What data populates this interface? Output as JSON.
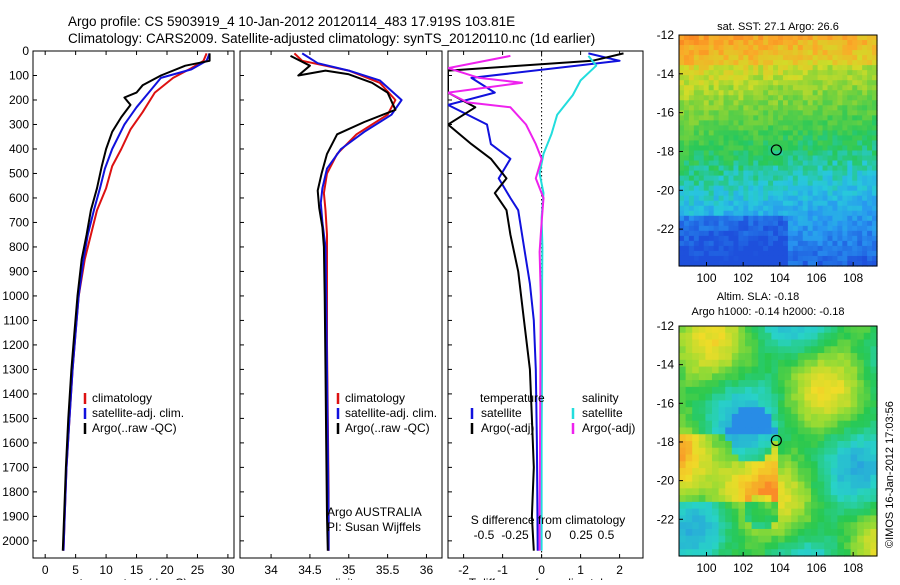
{
  "header": {
    "line1": "Argo profile: CS 5903919_4 10-Jan-2012 20120114_483 17.919S 103.81E",
    "line2": "Climatology: CARS2009. Satellite-adjusted climatology: synTS_20120110.nc (1d earlier)"
  },
  "colors": {
    "climatology": "#dd1111",
    "satellite": "#1111dd",
    "argo": "#000000",
    "sat_salinity": "#22dddd",
    "argo_salinity": "#ee22ee"
  },
  "chart_data": [
    {
      "type": "line",
      "xlabel": "temperature (deg C)",
      "ylabel": "",
      "xlim": [
        -2,
        31
      ],
      "ylim": [
        2070,
        0
      ],
      "xticks": [
        0,
        5,
        10,
        15,
        20,
        25,
        30
      ],
      "yticks": [
        0,
        100,
        200,
        300,
        400,
        500,
        600,
        700,
        800,
        900,
        1000,
        1100,
        1200,
        1300,
        1400,
        1500,
        1600,
        1700,
        1800,
        1900,
        2000
      ],
      "legend": [
        "climatology",
        "satellite-adj. clim.",
        "Argo(..raw -QC)"
      ],
      "series": [
        {
          "name": "climatology",
          "color": "#dd1111",
          "points": [
            [
              26.5,
              10
            ],
            [
              26,
              40
            ],
            [
              24,
              70
            ],
            [
              21,
              110
            ],
            [
              18,
              170
            ],
            [
              16,
              250
            ],
            [
              14,
              320
            ],
            [
              12.5,
              400
            ],
            [
              11,
              470
            ],
            [
              10,
              560
            ],
            [
              8.5,
              650
            ],
            [
              7.5,
              750
            ],
            [
              6.5,
              850
            ],
            [
              5.5,
              1000
            ],
            [
              5,
              1150
            ],
            [
              4.5,
              1300
            ],
            [
              4,
              1500
            ],
            [
              3.5,
              1700
            ],
            [
              3.2,
              1900
            ],
            [
              3,
              2040
            ]
          ]
        },
        {
          "name": "satellite-adj. clim.",
          "color": "#1111dd",
          "points": [
            [
              27,
              10
            ],
            [
              26.5,
              40
            ],
            [
              24,
              75
            ],
            [
              19,
              110
            ],
            [
              17,
              170
            ],
            [
              15,
              230
            ],
            [
              13,
              300
            ],
            [
              11,
              400
            ],
            [
              9.8,
              480
            ],
            [
              9,
              560
            ],
            [
              8,
              650
            ],
            [
              7,
              750
            ],
            [
              6.3,
              850
            ],
            [
              5.5,
              1000
            ],
            [
              5,
              1150
            ],
            [
              4.5,
              1300
            ],
            [
              4,
              1500
            ],
            [
              3.5,
              1700
            ],
            [
              3.2,
              1900
            ],
            [
              3,
              2040
            ]
          ]
        },
        {
          "name": "Argo(..raw -QC)",
          "color": "#000000",
          "points": [
            [
              27,
              10
            ],
            [
              27,
              40
            ],
            [
              23,
              60
            ],
            [
              19,
              100
            ],
            [
              16,
              140
            ],
            [
              15,
              170
            ],
            [
              13,
              190
            ],
            [
              14,
              220
            ],
            [
              12.5,
              270
            ],
            [
              11,
              330
            ],
            [
              10,
              400
            ],
            [
              9.3,
              470
            ],
            [
              8.5,
              560
            ],
            [
              7.5,
              650
            ],
            [
              6.8,
              750
            ],
            [
              6,
              850
            ],
            [
              5.3,
              1000
            ],
            [
              4.8,
              1150
            ],
            [
              4.3,
              1300
            ],
            [
              3.8,
              1500
            ],
            [
              3.4,
              1700
            ],
            [
              3.1,
              1900
            ],
            [
              2.9,
              2040
            ]
          ]
        }
      ]
    },
    {
      "type": "line",
      "xlabel": "salinity",
      "xlim": [
        33.6,
        36.2
      ],
      "ylim": [
        2070,
        0
      ],
      "xticks": [
        34,
        34.5,
        35,
        35.5,
        36
      ],
      "legend": [
        "climatology",
        "satellite-adj. clim.",
        "Argo(..raw -QC)"
      ],
      "annotation": [
        "Argo AUSTRALIA",
        "PI: Susan Wijffels"
      ],
      "series": [
        {
          "name": "climatology",
          "color": "#dd1111",
          "points": [
            [
              34.3,
              10
            ],
            [
              34.4,
              40
            ],
            [
              35,
              80
            ],
            [
              35.4,
              130
            ],
            [
              35.6,
              200
            ],
            [
              35.5,
              260
            ],
            [
              35.1,
              340
            ],
            [
              34.85,
              420
            ],
            [
              34.72,
              500
            ],
            [
              34.68,
              580
            ],
            [
              34.7,
              650
            ],
            [
              34.72,
              750
            ],
            [
              34.72,
              900
            ],
            [
              34.72,
              1200
            ],
            [
              34.73,
              1500
            ],
            [
              34.74,
              1800
            ],
            [
              34.74,
              2040
            ]
          ]
        },
        {
          "name": "satellite-adj. clim.",
          "color": "#1111dd",
          "points": [
            [
              34.4,
              10
            ],
            [
              34.6,
              50
            ],
            [
              35,
              80
            ],
            [
              35.4,
              120
            ],
            [
              35.68,
              200
            ],
            [
              35.55,
              260
            ],
            [
              35.2,
              330
            ],
            [
              34.9,
              400
            ],
            [
              34.72,
              480
            ],
            [
              34.66,
              560
            ],
            [
              34.64,
              620
            ],
            [
              34.66,
              700
            ],
            [
              34.7,
              800
            ],
            [
              34.71,
              1000
            ],
            [
              34.72,
              1300
            ],
            [
              34.73,
              1600
            ],
            [
              34.74,
              1900
            ],
            [
              34.74,
              2040
            ]
          ]
        },
        {
          "name": "Argo(..raw -QC)",
          "color": "#000000",
          "points": [
            [
              34.25,
              20
            ],
            [
              34.5,
              60
            ],
            [
              34.35,
              100
            ],
            [
              34.7,
              80
            ],
            [
              35,
              95
            ],
            [
              35.3,
              130
            ],
            [
              35.5,
              170
            ],
            [
              35.6,
              240
            ],
            [
              35.2,
              290
            ],
            [
              34.85,
              340
            ],
            [
              34.72,
              420
            ],
            [
              34.65,
              500
            ],
            [
              34.6,
              570
            ],
            [
              34.62,
              640
            ],
            [
              34.66,
              720
            ],
            [
              34.68,
              800
            ],
            [
              34.69,
              1000
            ],
            [
              34.7,
              1300
            ],
            [
              34.71,
              1600
            ],
            [
              34.72,
              1900
            ],
            [
              34.73,
              2040
            ]
          ]
        }
      ]
    },
    {
      "type": "line",
      "xlabel": "T difference from climatology",
      "xlabel_top": "S difference from climatology",
      "xlim": [
        -2.4,
        2.6
      ],
      "ylim": [
        2070,
        0
      ],
      "xticks": [
        -2,
        -1,
        0,
        1,
        2
      ],
      "xtick_labels": [
        "-2",
        "-1",
        "0",
        "1",
        "2"
      ],
      "top_ticks": [
        "-0.5",
        "-0.25",
        "0",
        "0.25",
        "0.5"
      ],
      "legend_left": {
        "title": "temperature",
        "items": [
          "satellite",
          "Argo(-adj)"
        ]
      },
      "legend_right": {
        "title": "salinity",
        "items": [
          "satellite",
          "Argo(-adj)"
        ]
      },
      "series": [
        {
          "name": "temperature satellite",
          "color": "#1111dd",
          "points": [
            [
              1.2,
              10
            ],
            [
              2,
              40
            ],
            [
              -1.8,
              110
            ],
            [
              -1.2,
              170
            ],
            [
              -2.4,
              220
            ],
            [
              -1.4,
              300
            ],
            [
              -1.3,
              380
            ],
            [
              -0.8,
              440
            ],
            [
              -1.1,
              520
            ],
            [
              -0.8,
              600
            ],
            [
              -0.6,
              650
            ],
            [
              -0.45,
              800
            ],
            [
              -0.3,
              950
            ],
            [
              -0.2,
              1100
            ],
            [
              -0.15,
              1300
            ],
            [
              -0.12,
              1600
            ],
            [
              -0.1,
              2040
            ]
          ]
        },
        {
          "name": "temperature Argo(-adj)",
          "color": "#000000",
          "points": [
            [
              2.1,
              10
            ],
            [
              1.3,
              40
            ],
            [
              -2.4,
              80
            ],
            [
              -2.4,
              130
            ],
            [
              -2.4,
              170
            ],
            [
              -1.7,
              230
            ],
            [
              -2.4,
              300
            ],
            [
              -1.8,
              380
            ],
            [
              -1.3,
              440
            ],
            [
              -0.9,
              520
            ],
            [
              -1.2,
              580
            ],
            [
              -0.9,
              650
            ],
            [
              -0.8,
              750
            ],
            [
              -0.6,
              900
            ],
            [
              -0.45,
              1100
            ],
            [
              -0.3,
              1300
            ],
            [
              -0.25,
              1500
            ],
            [
              -0.2,
              1700
            ],
            [
              -0.25,
              1900
            ],
            [
              -0.2,
              2040
            ]
          ]
        },
        {
          "name": "salinity satellite",
          "color": "#22dddd",
          "points": [
            [
              1.2,
              20
            ],
            [
              1.4,
              60
            ],
            [
              1.0,
              120
            ],
            [
              0.8,
              180
            ],
            [
              0.4,
              260
            ],
            [
              0.25,
              340
            ],
            [
              0.05,
              420
            ],
            [
              -0.05,
              500
            ],
            [
              0.05,
              580
            ],
            [
              0.0,
              680
            ],
            [
              0.02,
              800
            ],
            [
              0.01,
              1000
            ],
            [
              0.01,
              1300
            ],
            [
              0.0,
              1600
            ],
            [
              0.0,
              2040
            ]
          ]
        },
        {
          "name": "salinity Argo(-adj)",
          "color": "#ee22ee",
          "points": [
            [
              -0.8,
              20
            ],
            [
              -2.4,
              70
            ],
            [
              -1.6,
              110
            ],
            [
              -0.5,
              130
            ],
            [
              -2.4,
              170
            ],
            [
              -1.9,
              210
            ],
            [
              -0.8,
              230
            ],
            [
              -0.4,
              300
            ],
            [
              -0.15,
              380
            ],
            [
              0.0,
              440
            ],
            [
              -0.15,
              520
            ],
            [
              0.05,
              600
            ],
            [
              0.0,
              700
            ],
            [
              -0.05,
              820
            ],
            [
              -0.02,
              1000
            ],
            [
              -0.03,
              1300
            ],
            [
              -0.04,
              1600
            ],
            [
              -0.05,
              1900
            ],
            [
              -0.05,
              2040
            ]
          ]
        }
      ]
    },
    {
      "type": "heatmap",
      "title": "sat. SST: 27.1  Argo: 26.6",
      "xlim": [
        98.5,
        109.3
      ],
      "ylim": [
        -23.9,
        -12
      ],
      "xticks": [
        100,
        102,
        104,
        106,
        108
      ],
      "yticks": [
        -12,
        -14,
        -16,
        -18,
        -20,
        -22
      ],
      "marker": [
        103.81,
        -17.92
      ]
    },
    {
      "type": "heatmap",
      "title": "Altim. SLA: -0.18",
      "subtitle": "Argo h1000: -0.14  h2000: -0.18",
      "xlim": [
        98.5,
        109.3
      ],
      "ylim": [
        -23.9,
        -12
      ],
      "xticks": [
        100,
        102,
        104,
        106,
        108
      ],
      "yticks": [
        -12,
        -14,
        -16,
        -18,
        -20,
        -22
      ],
      "marker": [
        103.81,
        -17.92
      ]
    }
  ],
  "footer": {
    "stamp": "©IMOS 16-Jan-2012 17:03:56"
  }
}
